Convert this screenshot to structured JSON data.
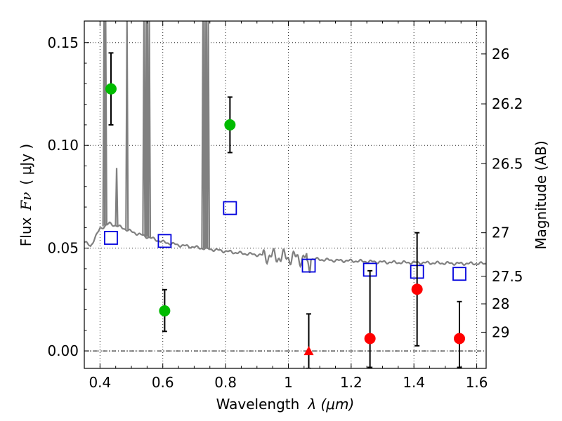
{
  "chart_data": {
    "type": "scatter",
    "xlabel_text": "Wavelength",
    "xlabel_math": "λ (μm)",
    "ylabel_left_text": "Flux",
    "ylabel_left_math": "Fν",
    "ylabel_left_unit": "( μJy )",
    "ylabel_right": "Magnitude (AB)",
    "xlim": [
      0.35,
      1.63
    ],
    "ylim": [
      -0.0085,
      0.1605
    ],
    "grid": true,
    "x_ticks": [
      {
        "value": 0.4,
        "label": "0.4"
      },
      {
        "value": 0.6,
        "label": "0.6"
      },
      {
        "value": 0.8,
        "label": "0.8"
      },
      {
        "value": 1.0,
        "label": "1"
      },
      {
        "value": 1.2,
        "label": "1.2"
      },
      {
        "value": 1.4,
        "label": "1.4"
      },
      {
        "value": 1.6,
        "label": "1.6"
      }
    ],
    "y_ticks": [
      {
        "value": 0.0,
        "label": "0.00"
      },
      {
        "value": 0.05,
        "label": "0.05"
      },
      {
        "value": 0.1,
        "label": "0.10"
      },
      {
        "value": 0.15,
        "label": "0.15"
      }
    ],
    "mag_ticks": [
      {
        "flux": 0.1445,
        "label": "26"
      },
      {
        "flux": 0.1202,
        "label": "26.2"
      },
      {
        "flux": 0.0911,
        "label": "26.5"
      },
      {
        "flux": 0.0575,
        "label": "27"
      },
      {
        "flux": 0.0363,
        "label": "27.5"
      },
      {
        "flux": 0.0229,
        "label": "28"
      },
      {
        "flux": 0.0091,
        "label": "29"
      }
    ],
    "detections": {
      "color": "#00bb00",
      "points": [
        {
          "x": 0.435,
          "y": 0.1275,
          "err_low": 0.11,
          "err_high": 0.145
        },
        {
          "x": 0.606,
          "y": 0.0195,
          "err_low": 0.0095,
          "err_high": 0.0298
        },
        {
          "x": 0.814,
          "y": 0.11,
          "err_low": 0.0965,
          "err_high": 0.1235
        }
      ]
    },
    "nondetections": {
      "color": "#ff0000",
      "points": [
        {
          "x": 1.26,
          "y": 0.006,
          "err_low": -0.008,
          "err_high": 0.039
        },
        {
          "x": 1.41,
          "y": 0.03,
          "err_low": 0.0025,
          "err_high": 0.0575
        },
        {
          "x": 1.545,
          "y": 0.006,
          "err_low": -0.008,
          "err_high": 0.024
        }
      ],
      "upper_limit": {
        "x": 1.065,
        "y": 0.0,
        "err_low": -0.0085,
        "err_high": 0.018
      }
    },
    "model_photometry": {
      "color": "#0000dd",
      "points": [
        {
          "x": 0.435,
          "y": 0.055
        },
        {
          "x": 0.606,
          "y": 0.0535
        },
        {
          "x": 0.814,
          "y": 0.0695
        },
        {
          "x": 1.065,
          "y": 0.0415
        },
        {
          "x": 1.26,
          "y": 0.0395
        },
        {
          "x": 1.41,
          "y": 0.0385
        },
        {
          "x": 1.545,
          "y": 0.0375
        }
      ]
    },
    "model_spectrum": {
      "color": "#808080",
      "continuum": [
        [
          0.35,
          0.053
        ],
        [
          0.37,
          0.051
        ],
        [
          0.4,
          0.0595
        ],
        [
          0.43,
          0.062
        ],
        [
          0.47,
          0.06
        ],
        [
          0.5,
          0.058
        ],
        [
          0.55,
          0.0555
        ],
        [
          0.6,
          0.053
        ],
        [
          0.65,
          0.0515
        ],
        [
          0.7,
          0.0505
        ],
        [
          0.75,
          0.0495
        ],
        [
          0.8,
          0.0485
        ],
        [
          0.85,
          0.0475
        ],
        [
          0.9,
          0.0468
        ],
        [
          0.95,
          0.046
        ],
        [
          1.0,
          0.0455
        ],
        [
          1.05,
          0.045
        ],
        [
          1.1,
          0.0445
        ],
        [
          1.15,
          0.044
        ],
        [
          1.2,
          0.0438
        ],
        [
          1.25,
          0.0435
        ],
        [
          1.3,
          0.0432
        ],
        [
          1.35,
          0.043
        ],
        [
          1.4,
          0.043
        ],
        [
          1.45,
          0.0428
        ],
        [
          1.5,
          0.0427
        ],
        [
          1.55,
          0.0425
        ],
        [
          1.6,
          0.0425
        ],
        [
          1.63,
          0.0425
        ]
      ],
      "emission_lines": [
        {
          "x": 0.413,
          "peak": 0.161
        },
        {
          "x": 0.418,
          "peak": 0.161
        },
        {
          "x": 0.453,
          "peak": 0.089
        },
        {
          "x": 0.486,
          "peak": 0.161
        },
        {
          "x": 0.54,
          "peak": 0.161
        },
        {
          "x": 0.547,
          "peak": 0.161
        },
        {
          "x": 0.551,
          "peak": 0.161
        },
        {
          "x": 0.557,
          "peak": 0.161
        },
        {
          "x": 0.728,
          "peak": 0.161
        },
        {
          "x": 0.734,
          "peak": 0.161
        },
        {
          "x": 0.739,
          "peak": 0.161
        },
        {
          "x": 0.745,
          "peak": 0.161
        }
      ]
    }
  }
}
